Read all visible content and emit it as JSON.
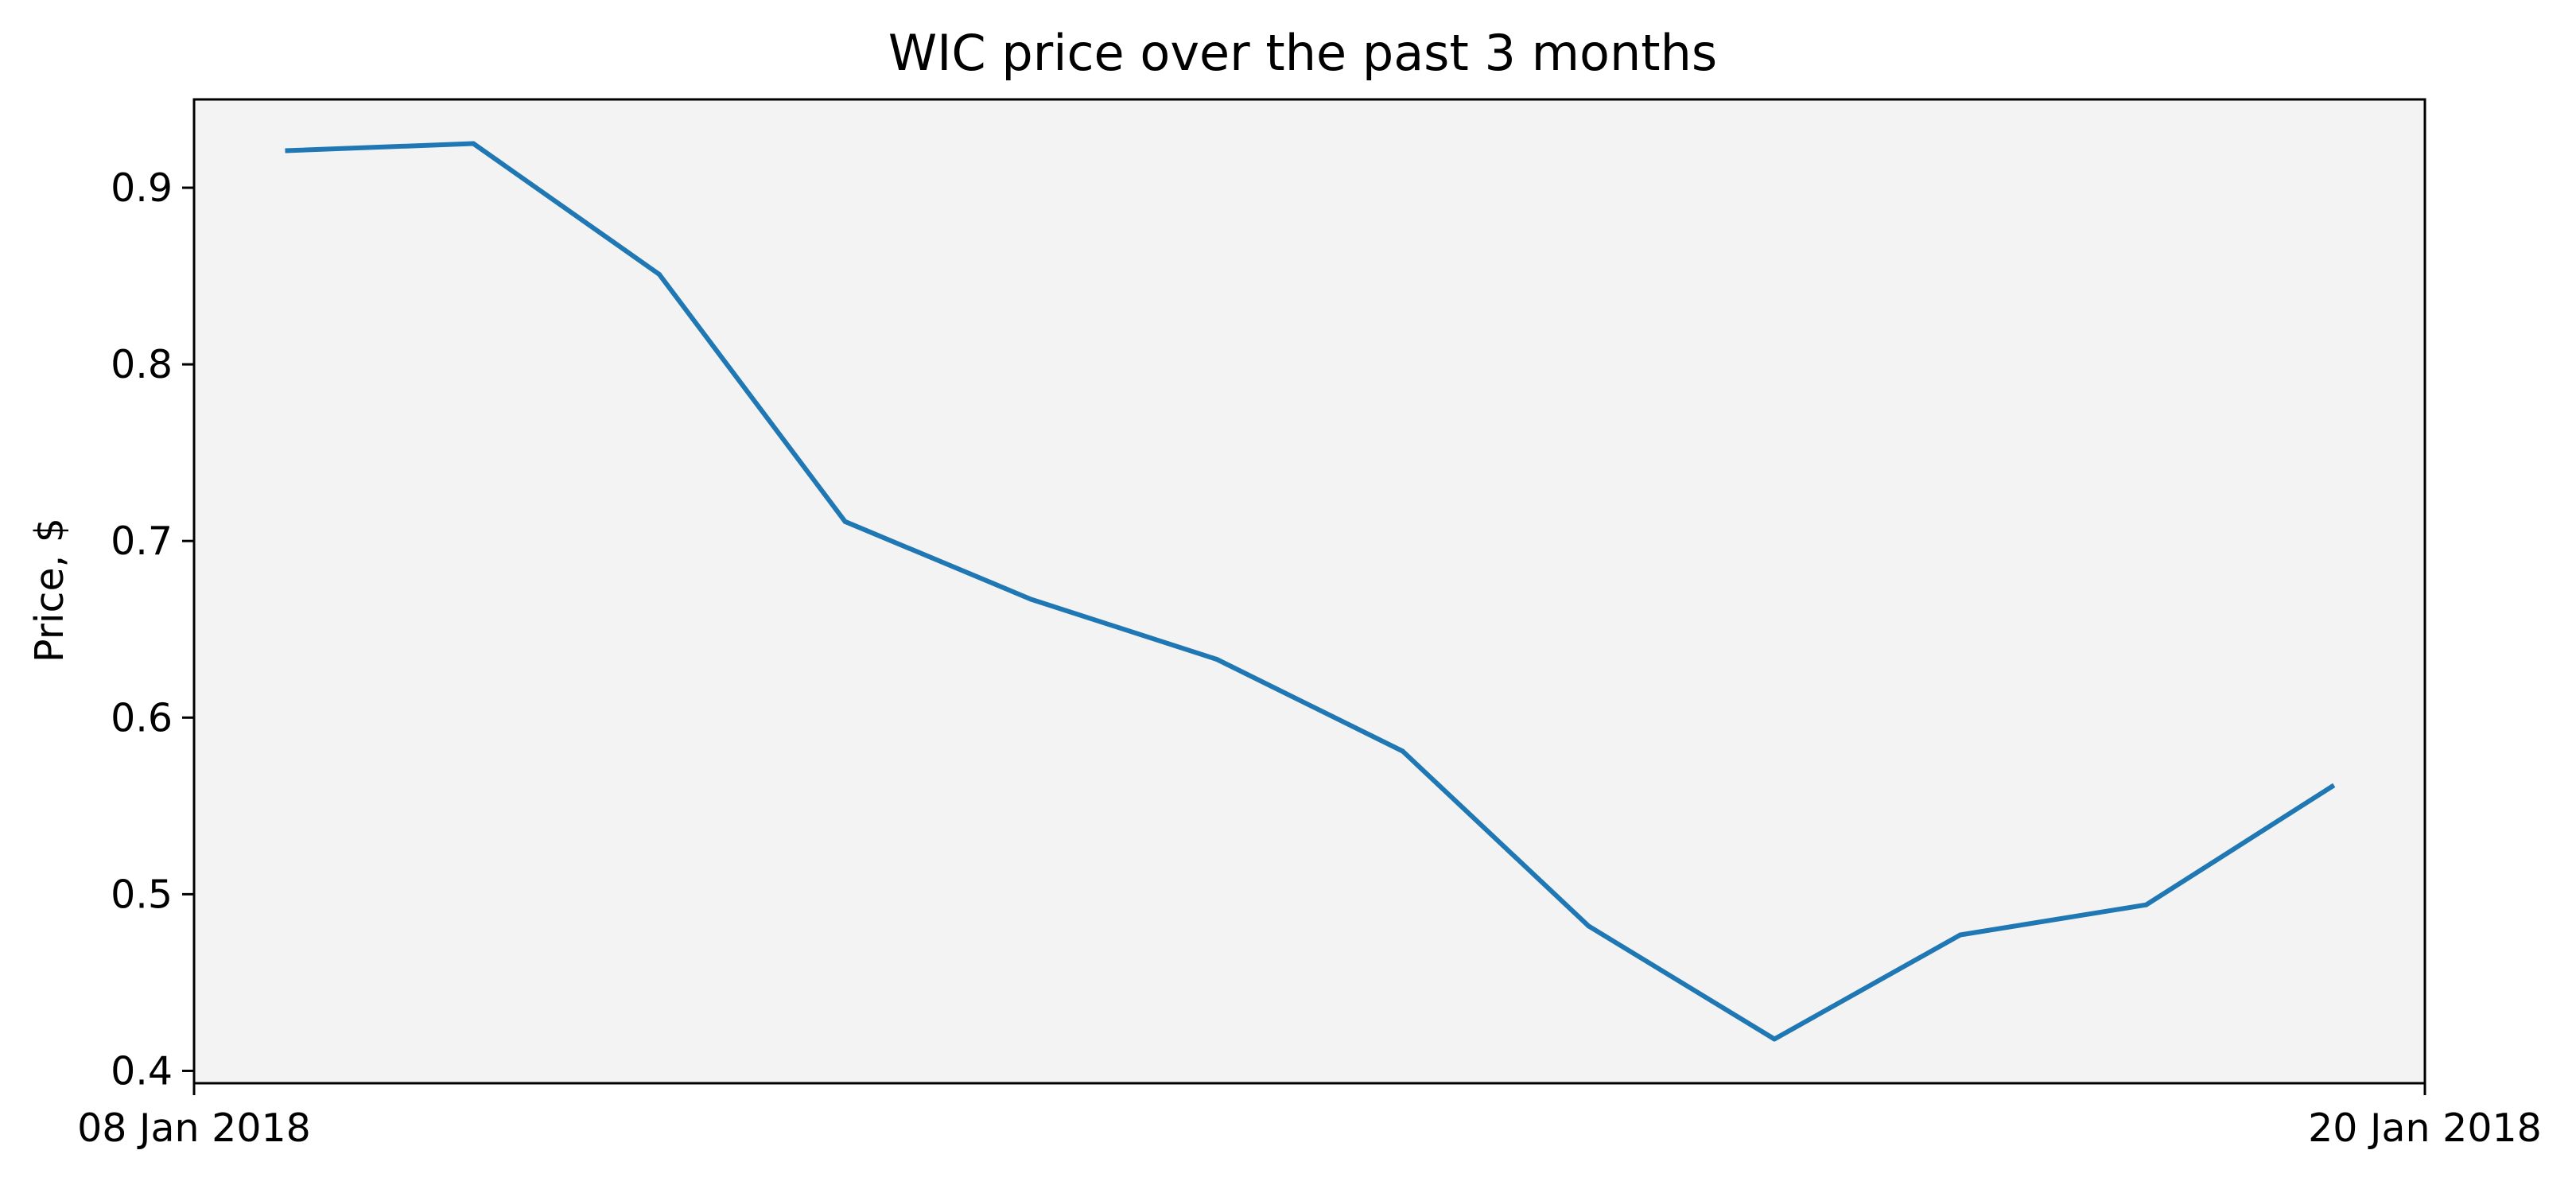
{
  "chart_data": {
    "type": "line",
    "title": "WIC price over the past 3 months",
    "xlabel": "",
    "ylabel": "Price, $",
    "x": [
      "2018-01-08",
      "2018-01-09",
      "2018-01-10",
      "2018-01-11",
      "2018-01-12",
      "2018-01-13",
      "2018-01-14",
      "2018-01-15",
      "2018-01-16",
      "2018-01-17",
      "2018-01-18",
      "2018-01-19"
    ],
    "series": [
      {
        "color": "#1f77b4",
        "values": [
          0.921,
          0.925,
          0.851,
          0.711,
          0.667,
          0.633,
          0.581,
          0.482,
          0.418,
          0.477,
          0.494,
          0.561
        ]
      }
    ],
    "xlim": [
      "2018-01-07T11:56",
      "2018-01-19T12:00"
    ],
    "ylim": [
      0.393,
      0.95
    ],
    "x_ticks": [
      {
        "value": "2018-01-07T11:56",
        "label": "08 Jan 2018"
      },
      {
        "value": "2018-01-19T12:00",
        "label": "20 Jan 2018"
      }
    ],
    "y_ticks": [
      0.4,
      0.5,
      0.6,
      0.7,
      0.8,
      0.9
    ],
    "y_tick_labels": [
      "0.4",
      "0.5",
      "0.6",
      "0.7",
      "0.8",
      "0.9"
    ],
    "grid": false,
    "legend": "none",
    "plot_background": "#f3f3f3"
  }
}
